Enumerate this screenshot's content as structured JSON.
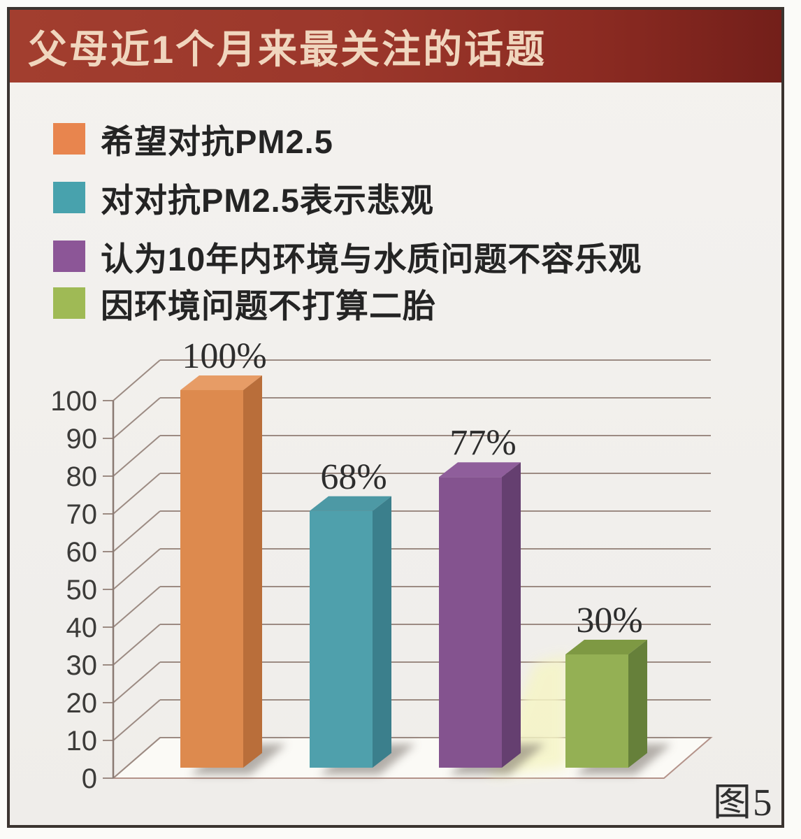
{
  "header": {
    "title": "父母近1个月来最关注的话题",
    "bg_color": "#97332A",
    "text_color": "#F0D6BE"
  },
  "legend": {
    "items": [
      {
        "label": "希望对抗PM2.5",
        "color": "#E8854E"
      },
      {
        "label": "对对抗PM2.5表示悲观",
        "color": "#48A2AD"
      },
      {
        "label": "认为10年内环境与水质问题不容乐观",
        "color": "#8C5697"
      },
      {
        "label": "因环境问题不打算二胎",
        "color": "#9FBA55"
      }
    ]
  },
  "figure": {
    "caption": "图5"
  },
  "chart_data": {
    "type": "bar",
    "style": "3d-column",
    "title": "父母近1个月来最关注的话题",
    "xlabel": "",
    "ylabel": "",
    "ylim": [
      0,
      100
    ],
    "yticks": [
      0,
      10,
      20,
      30,
      40,
      50,
      60,
      70,
      80,
      90,
      100
    ],
    "grid": true,
    "legend_position": "top-left",
    "categories": [
      "希望对抗PM2.5",
      "对对抗PM2.5表示悲观",
      "认为10年内环境与水质问题不容乐观",
      "因环境问题不打算二胎"
    ],
    "values": [
      100,
      68,
      77,
      30
    ],
    "series": [
      {
        "name": "希望对抗PM2.5",
        "value": 100,
        "label": "100%",
        "front": "#DD8A4E",
        "top": "#E79C66",
        "side": "#B96E3A"
      },
      {
        "name": "对对抗PM2.5表示悲观",
        "value": 68,
        "label": "68%",
        "front": "#4FA0AC",
        "top": "#4D99A5",
        "side": "#3B7F8C"
      },
      {
        "name": "认为10年内环境与水质问题不容乐观",
        "value": 77,
        "label": "77%",
        "front": "#84538F",
        "top": "#8F5E9B",
        "side": "#653F70"
      },
      {
        "name": "因环境问题不打算二胎",
        "value": 30,
        "label": "30%",
        "front": "#94B054",
        "top": "#7E9943",
        "side": "#66803A"
      }
    ],
    "colors": {
      "grid": "#9C8B83",
      "axis": "#8A7A73",
      "floor_fill": "#FBFAF6",
      "floor_stroke": "#B4938A",
      "tick_label": "#3C3B39",
      "value_label": "#2D2D2D",
      "shadow": "#6B625B",
      "glow": "#F6F5C6"
    }
  }
}
